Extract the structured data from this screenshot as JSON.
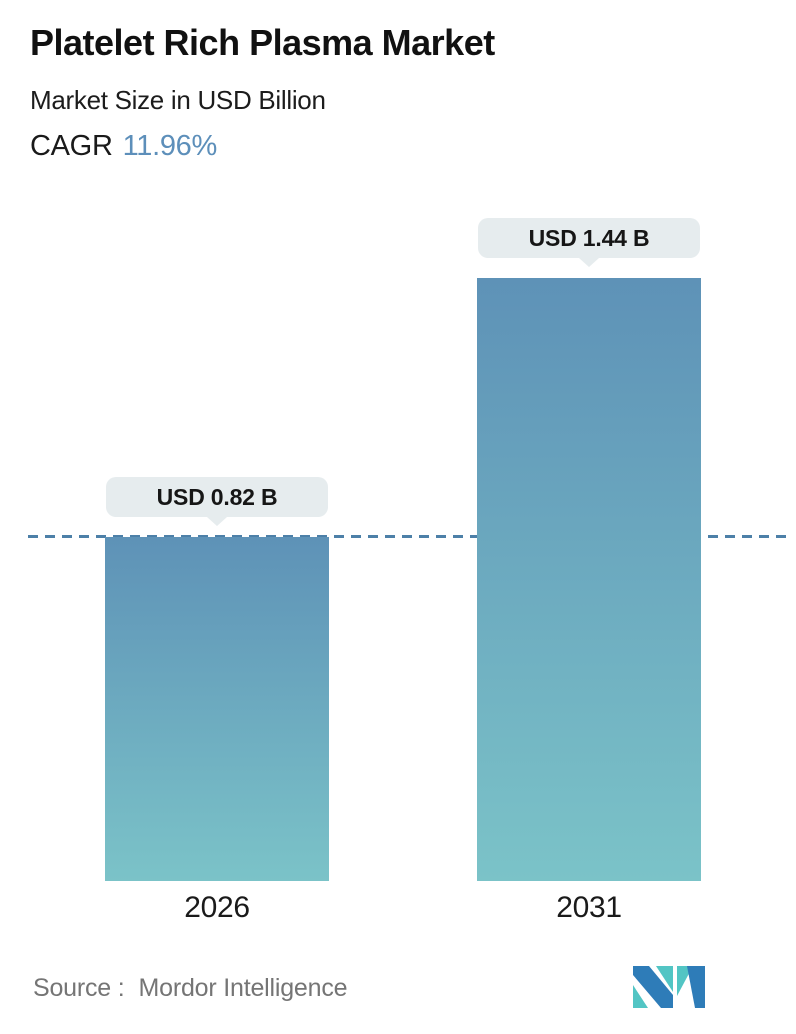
{
  "header": {
    "title": "Platelet Rich Plasma Market",
    "subtitle": "Market Size in USD Billion",
    "cagr_label": "CAGR",
    "cagr_value": "11.96%"
  },
  "chart_data": {
    "type": "bar",
    "title": "Platelet Rich Plasma Market",
    "subtitle": "Market Size in USD Billion",
    "cagr": "11.96%",
    "categories": [
      "2026",
      "2031"
    ],
    "values": [
      0.82,
      1.44
    ],
    "value_labels": [
      "USD 0.82 B",
      "USD 1.44 B"
    ],
    "unit": "USD Billion",
    "ylim": [
      0,
      1.5
    ],
    "grid": false,
    "reference_line": {
      "style": "dashed",
      "at_value": 0.82
    },
    "colors": {
      "bar_top": "#5E92B7",
      "bar_bottom": "#7BC3C8",
      "dashed_line": "#4D80A8",
      "label_pill_bg": "#E6ECEE",
      "accent_blue": "#5D8FBA"
    }
  },
  "footer": {
    "source_label": "Source :",
    "source_value": "Mordor Intelligence",
    "logo": "mordor-intelligence-logo"
  }
}
